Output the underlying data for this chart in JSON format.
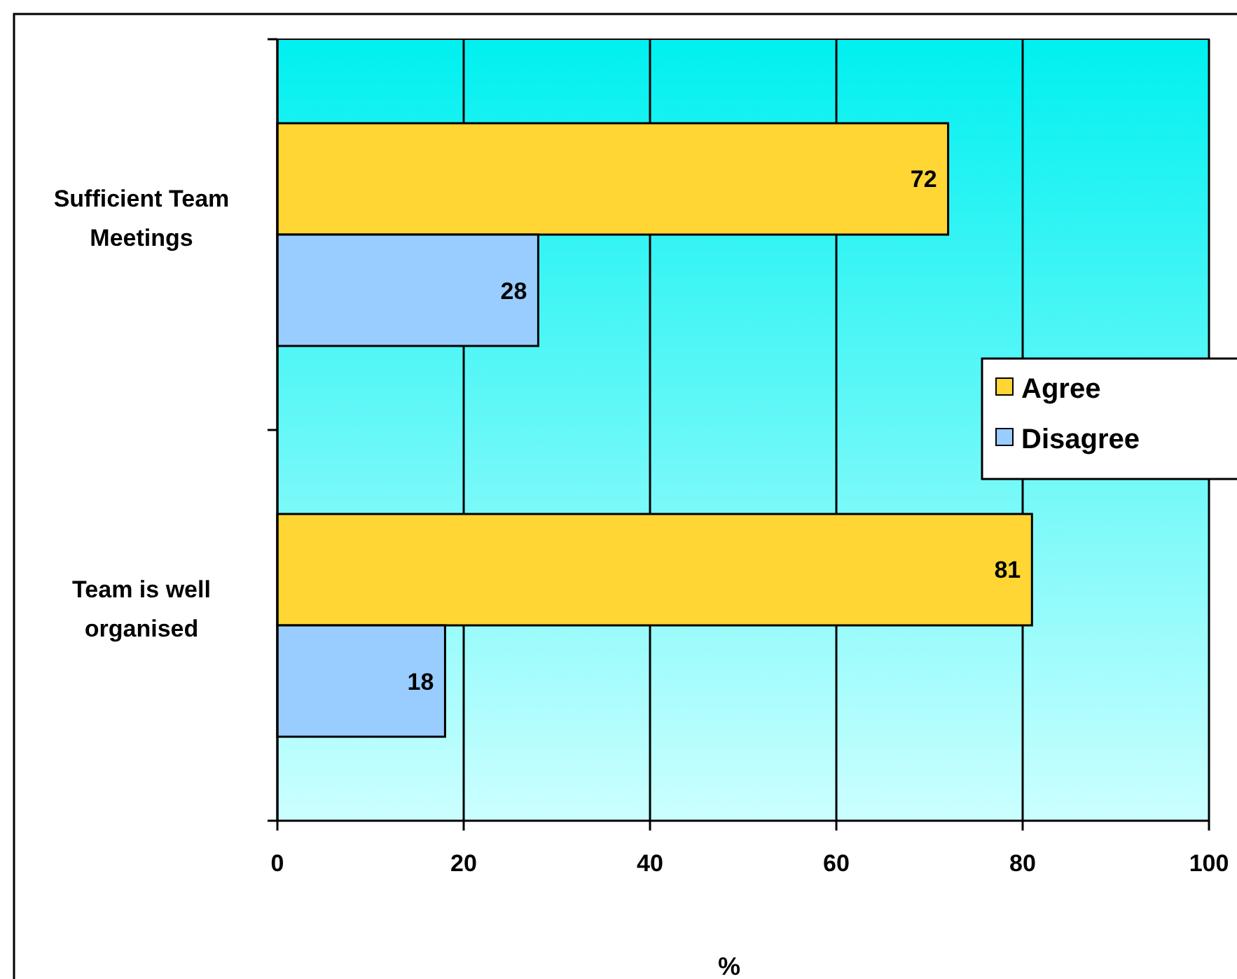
{
  "chart_data": {
    "type": "bar",
    "orientation": "horizontal",
    "xlabel": "%",
    "categories": [
      "Sufficient Team Meetings",
      "Team is well organised"
    ],
    "series": [
      {
        "name": "Agree",
        "color": "#ffd633",
        "values": [
          72,
          81
        ]
      },
      {
        "name": "Disagree",
        "color": "#99ccff",
        "values": [
          28,
          18
        ]
      }
    ],
    "xlim": [
      0,
      100
    ],
    "xticks": [
      0,
      20,
      40,
      60,
      80,
      100
    ],
    "grid": "x",
    "legend": "right",
    "data_labels": true
  }
}
